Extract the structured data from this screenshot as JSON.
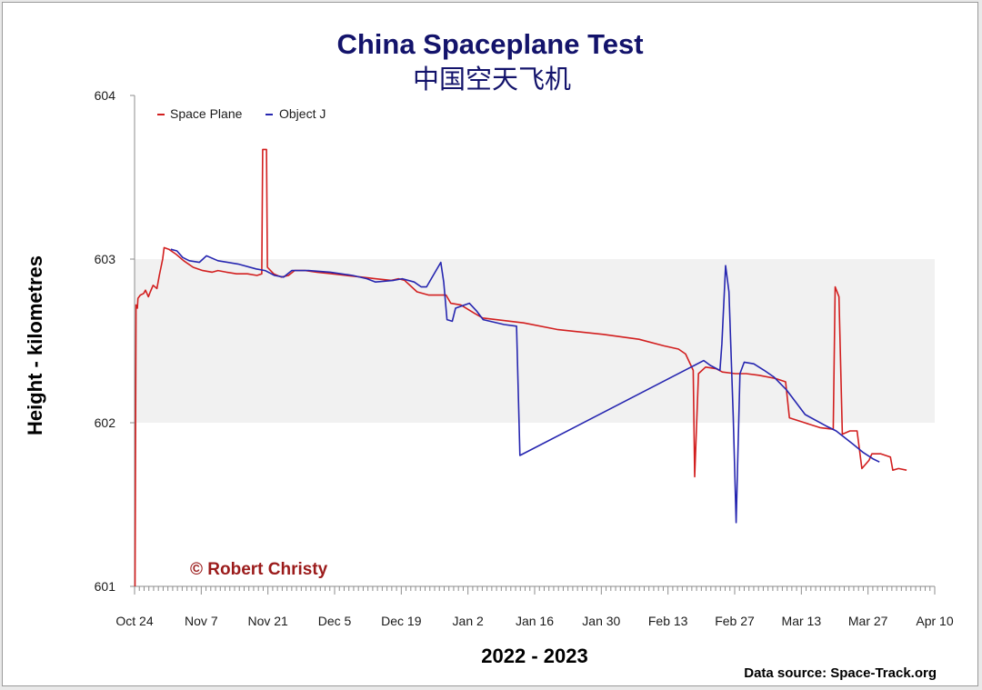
{
  "colors": {
    "title": "#13136b",
    "space_plane": "#d21f1f",
    "object_j": "#2626b0",
    "credit": "#9b1b1b",
    "band": "#f1f1f1",
    "axis": "#8c8c8c"
  },
  "chart_data": {
    "type": "line",
    "title": "China Spaceplane Test",
    "subtitle": "中国空天飞机",
    "xlabel": "2022 - 2023",
    "ylabel": "Height - kilometres",
    "ylim": [
      601,
      604
    ],
    "yticks": [
      601,
      602,
      603,
      604
    ],
    "xlim": [
      0,
      168
    ],
    "x_unit": "days since Oct 24, 2022",
    "xticks": [
      {
        "x": 0,
        "label": "Oct 24"
      },
      {
        "x": 14,
        "label": "Nov 7"
      },
      {
        "x": 28,
        "label": "Nov 21"
      },
      {
        "x": 42,
        "label": "Dec 5"
      },
      {
        "x": 56,
        "label": "Dec 19"
      },
      {
        "x": 70,
        "label": "Jan 2"
      },
      {
        "x": 84,
        "label": "Jan 16"
      },
      {
        "x": 98,
        "label": "Jan 30"
      },
      {
        "x": 112,
        "label": "Feb 13"
      },
      {
        "x": 126,
        "label": "Feb 27"
      },
      {
        "x": 140,
        "label": "Mar 13"
      },
      {
        "x": 154,
        "label": "Mar 27"
      },
      {
        "x": 168,
        "label": "Apr 10"
      }
    ],
    "shaded_band": [
      602,
      603
    ],
    "legend": {
      "placement": "top-left",
      "entries": [
        "Space Plane",
        "Object J"
      ]
    },
    "series": [
      {
        "name": "Space Plane",
        "color": "#d21f1f",
        "points": [
          [
            0.1,
            601.0
          ],
          [
            0.3,
            602.72
          ],
          [
            0.6,
            602.7
          ],
          [
            0.7,
            602.76
          ],
          [
            1.2,
            602.78
          ],
          [
            1.9,
            602.79
          ],
          [
            2.3,
            602.81
          ],
          [
            2.9,
            602.77
          ],
          [
            3.3,
            602.8
          ],
          [
            3.9,
            602.84
          ],
          [
            4.7,
            602.82
          ],
          [
            5.2,
            602.9
          ],
          [
            5.9,
            603.0
          ],
          [
            6.2,
            603.07
          ],
          [
            7.2,
            603.06
          ],
          [
            8.7,
            603.03
          ],
          [
            10.3,
            602.99
          ],
          [
            12.3,
            602.95
          ],
          [
            14.3,
            602.93
          ],
          [
            16.3,
            602.92
          ],
          [
            17.5,
            602.93
          ],
          [
            19.3,
            602.92
          ],
          [
            21.4,
            602.91
          ],
          [
            23.7,
            602.91
          ],
          [
            25.7,
            602.9
          ],
          [
            26.7,
            602.91
          ],
          [
            26.9,
            603.67
          ],
          [
            27.7,
            603.67
          ],
          [
            27.9,
            602.95
          ],
          [
            29.2,
            602.91
          ],
          [
            30.8,
            602.89
          ],
          [
            32.3,
            602.9
          ],
          [
            33.6,
            602.93
          ],
          [
            35.8,
            602.93
          ],
          [
            38.3,
            602.92
          ],
          [
            41.5,
            602.91
          ],
          [
            44.4,
            602.9
          ],
          [
            47.7,
            602.89
          ],
          [
            50.5,
            602.88
          ],
          [
            53.9,
            602.87
          ],
          [
            55.4,
            602.88
          ],
          [
            56.7,
            602.87
          ],
          [
            59.3,
            602.8
          ],
          [
            61.8,
            602.78
          ],
          [
            65.4,
            602.78
          ],
          [
            66.4,
            602.73
          ],
          [
            68.5,
            602.72
          ],
          [
            71.3,
            602.67
          ],
          [
            73.1,
            602.64
          ],
          [
            75.9,
            602.63
          ],
          [
            81.7,
            602.61
          ],
          [
            88.7,
            602.57
          ],
          [
            98.4,
            602.54
          ],
          [
            105.9,
            602.51
          ],
          [
            111.1,
            602.47
          ],
          [
            114.2,
            602.45
          ],
          [
            115.7,
            602.42
          ],
          [
            117.3,
            602.32
          ],
          [
            117.6,
            601.67
          ],
          [
            118.4,
            602.3
          ],
          [
            119.9,
            602.34
          ],
          [
            122.1,
            602.33
          ],
          [
            123.4,
            602.31
          ],
          [
            126.1,
            602.3
          ],
          [
            128.4,
            602.3
          ],
          [
            131.1,
            602.29
          ],
          [
            134.6,
            602.27
          ],
          [
            136.7,
            602.25
          ],
          [
            137.5,
            602.03
          ],
          [
            140.7,
            602.0
          ],
          [
            143.9,
            601.97
          ],
          [
            146.7,
            601.96
          ],
          [
            147.1,
            602.83
          ],
          [
            147.9,
            602.77
          ],
          [
            148.6,
            601.93
          ],
          [
            150.2,
            601.95
          ],
          [
            151.7,
            601.95
          ],
          [
            152.7,
            601.72
          ],
          [
            154.2,
            601.77
          ],
          [
            154.8,
            601.81
          ],
          [
            156.7,
            601.81
          ],
          [
            158.7,
            601.79
          ],
          [
            159.2,
            601.71
          ],
          [
            160.4,
            601.72
          ],
          [
            162.1,
            601.71
          ]
        ]
      },
      {
        "name": "Object J",
        "color": "#2626b0",
        "points": [
          [
            7.6,
            603.06
          ],
          [
            8.9,
            603.05
          ],
          [
            10.1,
            603.01
          ],
          [
            11.5,
            602.99
          ],
          [
            13.6,
            602.98
          ],
          [
            15.1,
            603.02
          ],
          [
            17.5,
            602.99
          ],
          [
            21.7,
            602.97
          ],
          [
            25.5,
            602.94
          ],
          [
            27.4,
            602.93
          ],
          [
            29.4,
            602.9
          ],
          [
            31.3,
            602.89
          ],
          [
            33.0,
            602.93
          ],
          [
            36.5,
            602.93
          ],
          [
            41.1,
            602.92
          ],
          [
            45.8,
            602.9
          ],
          [
            48.8,
            602.88
          ],
          [
            50.6,
            602.86
          ],
          [
            54.4,
            602.87
          ],
          [
            56.2,
            602.88
          ],
          [
            58.7,
            602.86
          ],
          [
            60.2,
            602.83
          ],
          [
            61.3,
            602.83
          ],
          [
            62.3,
            602.88
          ],
          [
            64.3,
            602.98
          ],
          [
            64.9,
            602.86
          ],
          [
            65.6,
            602.63
          ],
          [
            66.7,
            602.62
          ],
          [
            67.4,
            602.7
          ],
          [
            70.3,
            602.73
          ],
          [
            71.9,
            602.68
          ],
          [
            73.2,
            602.63
          ],
          [
            77.6,
            602.6
          ],
          [
            80.2,
            602.59
          ],
          [
            80.9,
            601.8
          ],
          [
            119.5,
            602.38
          ],
          [
            120.9,
            602.35
          ],
          [
            122.9,
            602.32
          ],
          [
            123.3,
            602.48
          ],
          [
            124.1,
            602.96
          ],
          [
            124.8,
            602.8
          ],
          [
            125.7,
            602.04
          ],
          [
            126.3,
            601.39
          ],
          [
            127.1,
            602.3
          ],
          [
            128.0,
            602.37
          ],
          [
            130.0,
            602.36
          ],
          [
            132.2,
            602.32
          ],
          [
            134.2,
            602.28
          ],
          [
            136.9,
            602.2
          ],
          [
            140.8,
            602.05
          ],
          [
            145.2,
            601.98
          ],
          [
            147.3,
            601.95
          ],
          [
            150.8,
            601.87
          ],
          [
            152.9,
            601.82
          ],
          [
            155.0,
            601.78
          ],
          [
            156.4,
            601.76
          ]
        ]
      }
    ]
  },
  "credit": "© Robert Christy",
  "source_note": "Data source: Space-Track.org"
}
